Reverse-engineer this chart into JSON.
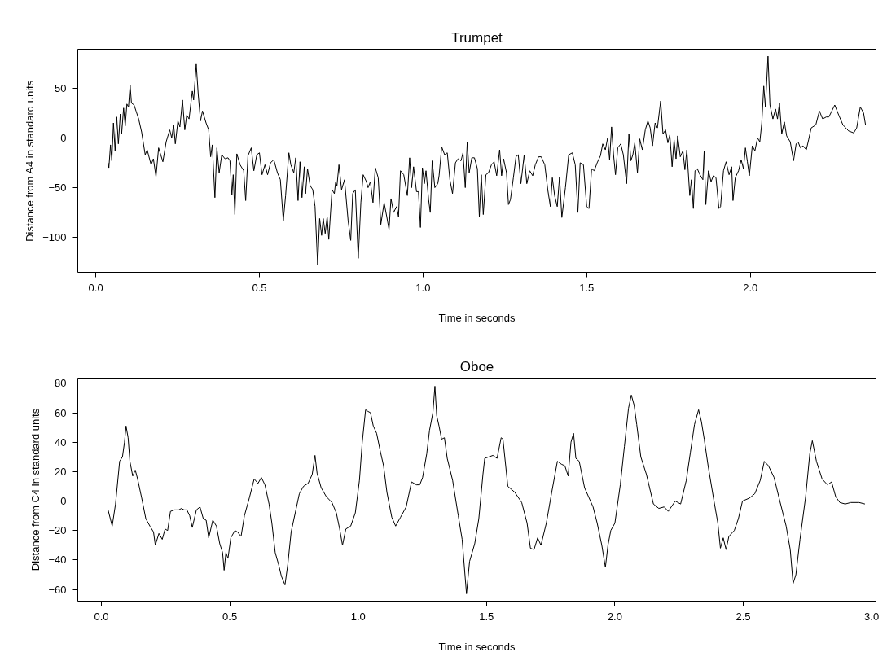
{
  "chart_data": [
    {
      "type": "line",
      "title": "Trumpet",
      "xlabel": "Time in seconds",
      "ylabel": "Distance from A4 in standard units",
      "xlim": [
        -0.055,
        2.384
      ],
      "ylim": [
        -135,
        89
      ],
      "xticks": [
        {
          "value": 0,
          "label": "0.0"
        },
        0.5,
        {
          "value": 1,
          "label": "1.0"
        },
        1.5,
        {
          "value": 2,
          "label": "2.0"
        }
      ],
      "yticks": [
        -100,
        -50,
        0,
        50
      ],
      "grid": false,
      "marker": "none",
      "line_style": "solid",
      "series": [
        {
          "color": "#000000",
          "x": [
            0.038,
            0.04,
            0.045,
            0.049,
            0.054,
            0.059,
            0.064,
            0.069,
            0.075,
            0.079,
            0.085,
            0.09,
            0.095,
            0.1,
            0.105,
            0.109,
            0.117,
            0.123,
            0.131,
            0.14,
            0.151,
            0.157,
            0.169,
            0.176,
            0.184,
            0.192,
            0.205,
            0.215,
            0.226,
            0.232,
            0.238,
            0.243,
            0.251,
            0.257,
            0.265,
            0.272,
            0.278,
            0.285,
            0.295,
            0.299,
            0.307,
            0.313,
            0.32,
            0.326,
            0.337,
            0.345,
            0.351,
            0.356,
            0.364,
            0.37,
            0.377,
            0.385,
            0.395,
            0.404,
            0.41,
            0.416,
            0.42,
            0.425,
            0.431,
            0.441,
            0.452,
            0.458,
            0.465,
            0.475,
            0.483,
            0.492,
            0.5,
            0.508,
            0.517,
            0.525,
            0.534,
            0.544,
            0.555,
            0.564,
            0.573,
            0.58,
            0.59,
            0.596,
            0.605,
            0.611,
            0.618,
            0.624,
            0.63,
            0.637,
            0.641,
            0.647,
            0.655,
            0.663,
            0.67,
            0.678,
            0.684,
            0.69,
            0.695,
            0.701,
            0.707,
            0.712,
            0.722,
            0.729,
            0.733,
            0.737,
            0.743,
            0.751,
            0.76,
            0.771,
            0.779,
            0.785,
            0.793,
            0.802,
            0.81,
            0.817,
            0.827,
            0.832,
            0.839,
            0.847,
            0.854,
            0.863,
            0.871,
            0.881,
            0.889,
            0.896,
            0.902,
            0.91,
            0.919,
            0.925,
            0.931,
            0.941,
            0.952,
            0.959,
            0.965,
            0.971,
            0.98,
            0.986,
            0.992,
            0.998,
            1.004,
            1.009,
            1.017,
            1.022,
            1.028,
            1.036,
            1.045,
            1.049,
            1.057,
            1.066,
            1.074,
            1.082,
            1.09,
            1.099,
            1.107,
            1.116,
            1.122,
            1.129,
            1.135,
            1.141,
            1.149,
            1.157,
            1.166,
            1.172,
            1.178,
            1.184,
            1.192,
            1.2,
            1.209,
            1.217,
            1.225,
            1.234,
            1.24,
            1.246,
            1.255,
            1.261,
            1.267,
            1.276,
            1.284,
            1.291,
            1.299,
            1.309,
            1.317,
            1.326,
            1.335,
            1.343,
            1.353,
            1.361,
            1.372,
            1.381,
            1.389,
            1.395,
            1.402,
            1.41,
            1.417,
            1.424,
            1.435,
            1.445,
            1.456,
            1.465,
            1.473,
            1.48,
            1.49,
            1.5,
            1.507,
            1.515,
            1.523,
            1.532,
            1.542,
            1.549,
            1.557,
            1.564,
            1.57,
            1.576,
            1.582,
            1.588,
            1.595,
            1.604,
            1.612,
            1.622,
            1.629,
            1.635,
            1.641,
            1.647,
            1.655,
            1.662,
            1.67,
            1.679,
            1.687,
            1.694,
            1.701,
            1.709,
            1.716,
            1.726,
            1.733,
            1.741,
            1.748,
            1.754,
            1.761,
            1.767,
            1.773,
            1.778,
            1.786,
            1.794,
            1.8,
            1.806,
            1.815,
            1.82,
            1.826,
            1.831,
            1.838,
            1.846,
            1.855,
            1.859,
            1.864,
            1.872,
            1.88,
            1.887,
            1.895,
            1.904,
            1.909,
            1.918,
            1.926,
            1.935,
            1.943,
            1.947,
            1.954,
            1.964,
            1.972,
            1.979,
            1.985,
            1.991,
            1.997,
            2.006,
            2.014,
            2.022,
            2.029,
            2.035,
            2.041,
            2.046,
            2.054,
            2.06,
            2.069,
            2.077,
            2.083,
            2.089,
            2.096,
            2.104,
            2.111,
            2.122,
            2.132,
            2.14,
            2.146,
            2.153,
            2.161,
            2.171,
            2.178,
            2.186,
            2.2,
            2.211,
            2.221,
            2.232,
            2.24,
            2.258,
            2.27,
            2.283,
            2.3,
            2.316,
            2.325,
            2.336,
            2.346,
            2.352
          ],
          "values": [
            -25,
            -30,
            -7,
            -23,
            15,
            -13,
            21,
            -6,
            24,
            4,
            30,
            12,
            34,
            31,
            53,
            35,
            33,
            27,
            19,
            6,
            -17,
            -12,
            -27,
            -21,
            -39,
            -10,
            -24,
            -4,
            8,
            0,
            13,
            -6,
            17,
            11,
            38,
            8,
            23,
            19,
            47,
            38,
            74,
            44,
            17,
            27,
            15,
            8,
            -19,
            -7,
            -60,
            -10,
            -35,
            -17,
            -21,
            -20,
            -23,
            -57,
            -37,
            -77,
            -16,
            -27,
            -33,
            -63,
            -18,
            -10,
            -33,
            -17,
            -15,
            -37,
            -27,
            -37,
            -25,
            -22,
            -35,
            -42,
            -83,
            -58,
            -15,
            -27,
            -35,
            -20,
            -63,
            -24,
            -60,
            -29,
            -56,
            -31,
            -48,
            -52,
            -69,
            -128,
            -81,
            -98,
            -81,
            -96,
            -79,
            -102,
            -52,
            -56,
            -44,
            -48,
            -27,
            -52,
            -42,
            -83,
            -103,
            -56,
            -52,
            -121,
            -65,
            -37,
            -44,
            -50,
            -44,
            -65,
            -30,
            -40,
            -87,
            -65,
            -79,
            -92,
            -61,
            -75,
            -69,
            -79,
            -33,
            -37,
            -58,
            -20,
            -50,
            -29,
            -54,
            -54,
            -90,
            -30,
            -46,
            -33,
            -62,
            -75,
            -23,
            -50,
            -46,
            -38,
            -9,
            -17,
            -15,
            -42,
            -56,
            -25,
            -21,
            -23,
            -15,
            -50,
            -4,
            -35,
            -20,
            -20,
            -31,
            -79,
            -37,
            -77,
            -37,
            -35,
            -27,
            -24,
            -38,
            -12,
            -38,
            -21,
            -35,
            -67,
            -62,
            -40,
            -19,
            -17,
            -46,
            -17,
            -46,
            -33,
            -38,
            -27,
            -19,
            -19,
            -27,
            -52,
            -69,
            -40,
            -58,
            -69,
            -39,
            -80,
            -50,
            -17,
            -15,
            -27,
            -75,
            -25,
            -27,
            -69,
            -71,
            -31,
            -33,
            -25,
            -18,
            -6,
            -12,
            0,
            -22,
            11,
            -17,
            -37,
            -10,
            -6,
            -17,
            -46,
            4,
            -23,
            -17,
            -5,
            -35,
            -1,
            -12,
            8,
            17,
            10,
            -8,
            15,
            10,
            37,
            4,
            8,
            -5,
            3,
            -29,
            -2,
            -21,
            2,
            -19,
            -13,
            -32,
            -12,
            -58,
            -42,
            -71,
            -33,
            -31,
            -37,
            -42,
            -13,
            -67,
            -33,
            -44,
            -38,
            -40,
            -71,
            -69,
            -33,
            -24,
            -37,
            -29,
            -63,
            -40,
            -33,
            -22,
            -31,
            -10,
            -24,
            -38,
            -8,
            -13,
            0,
            -4,
            15,
            52,
            31,
            82,
            33,
            19,
            29,
            19,
            35,
            4,
            16,
            2,
            -4,
            -23,
            -6,
            -4,
            -10,
            -8,
            -12,
            -2,
            10,
            13,
            27,
            19,
            21,
            21,
            33,
            23,
            13,
            7,
            5,
            10,
            31,
            25,
            13
          ]
        }
      ]
    },
    {
      "type": "line",
      "title": "Oboe",
      "xlabel": "Time in seconds",
      "ylabel": "Distance from C4 in standard units",
      "xlim": [
        -0.092,
        3.017
      ],
      "ylim": [
        -68,
        83.5
      ],
      "xticks": [
        {
          "value": 0,
          "label": "0.0"
        },
        0.5,
        {
          "value": 1,
          "label": "1.0"
        },
        1.5,
        {
          "value": 2,
          "label": "2.0"
        },
        2.5,
        {
          "value": 3,
          "label": "3.0"
        }
      ],
      "yticks": [
        -60,
        -40,
        -20,
        0,
        20,
        40,
        60,
        80
      ],
      "grid": false,
      "marker": "none",
      "line_style": "solid",
      "series": [
        {
          "color": "#000000",
          "x": [
            0.026,
            0.042,
            0.055,
            0.071,
            0.082,
            0.09,
            0.096,
            0.104,
            0.111,
            0.122,
            0.132,
            0.141,
            0.157,
            0.173,
            0.189,
            0.203,
            0.21,
            0.224,
            0.237,
            0.248,
            0.258,
            0.269,
            0.285,
            0.301,
            0.312,
            0.322,
            0.333,
            0.344,
            0.354,
            0.37,
            0.384,
            0.397,
            0.408,
            0.418,
            0.434,
            0.448,
            0.461,
            0.472,
            0.478,
            0.485,
            0.493,
            0.504,
            0.52,
            0.53,
            0.544,
            0.557,
            0.576,
            0.595,
            0.61,
            0.623,
            0.637,
            0.653,
            0.664,
            0.677,
            0.69,
            0.701,
            0.715,
            0.726,
            0.739,
            0.755,
            0.771,
            0.787,
            0.805,
            0.821,
            0.832,
            0.84,
            0.856,
            0.876,
            0.898,
            0.915,
            0.928,
            0.939,
            0.952,
            0.971,
            0.989,
            1.005,
            1.016,
            1.029,
            1.037,
            1.048,
            1.059,
            1.072,
            1.086,
            1.099,
            1.112,
            1.131,
            1.146,
            1.165,
            1.187,
            1.208,
            1.227,
            1.24,
            1.251,
            1.267,
            1.278,
            1.291,
            1.299,
            1.306,
            1.315,
            1.325,
            1.336,
            1.347,
            1.368,
            1.39,
            1.405,
            1.422,
            1.434,
            1.454,
            1.47,
            1.486,
            1.493,
            1.509,
            1.525,
            1.541,
            1.557,
            1.564,
            1.583,
            1.61,
            1.637,
            1.658,
            1.671,
            1.685,
            1.699,
            1.712,
            1.733,
            1.754,
            1.776,
            1.792,
            1.805,
            1.818,
            1.829,
            1.839,
            1.848,
            1.861,
            1.882,
            1.915,
            1.931,
            1.949,
            1.963,
            1.973,
            1.984,
            2.0,
            2.021,
            2.037,
            2.053,
            2.064,
            2.075,
            2.085,
            2.101,
            2.123,
            2.15,
            2.171,
            2.192,
            2.208,
            2.235,
            2.256,
            2.278,
            2.294,
            2.31,
            2.326,
            2.337,
            2.348,
            2.363,
            2.385,
            2.401,
            2.411,
            2.422,
            2.433,
            2.444,
            2.465,
            2.481,
            2.497,
            2.524,
            2.545,
            2.566,
            2.582,
            2.598,
            2.62,
            2.641,
            2.667,
            2.683,
            2.694,
            2.705,
            2.721,
            2.743,
            2.759,
            2.769,
            2.785,
            2.807,
            2.828,
            2.844,
            2.86,
            2.876,
            2.897,
            2.919,
            2.951,
            2.974
          ],
          "values": [
            -6,
            -17,
            -2,
            27,
            30,
            40,
            51,
            43,
            27,
            17,
            21,
            15,
            2,
            -12,
            -17,
            -21,
            -30,
            -22,
            -26,
            -19,
            -20,
            -7,
            -6,
            -6,
            -5,
            -6,
            -6,
            -10,
            -18,
            -6,
            -4,
            -12,
            -13,
            -25,
            -13,
            -17,
            -29,
            -35,
            -47,
            -35,
            -39,
            -25,
            -20,
            -21,
            -24,
            -10,
            2,
            15,
            12,
            16,
            11,
            -2,
            -15,
            -35,
            -43,
            -51,
            -57,
            -43,
            -21,
            -8,
            5,
            10,
            12,
            18,
            31,
            19,
            9,
            3,
            -1,
            -8,
            -19,
            -30,
            -19,
            -17,
            -8,
            14,
            40,
            62,
            61,
            60,
            51,
            46,
            34,
            24,
            6,
            -11,
            -17,
            -11,
            -4,
            13,
            11,
            11,
            16,
            32,
            48,
            60,
            78,
            58,
            51,
            42,
            43,
            29,
            14,
            -10,
            -26,
            -63,
            -41,
            -29,
            -12,
            18,
            29,
            30,
            31,
            29,
            43,
            42,
            10,
            6,
            -1,
            -15,
            -32,
            -33,
            -25,
            -30,
            -15,
            6,
            27,
            25,
            24,
            17,
            40,
            46,
            29,
            27,
            9,
            -4,
            -15,
            -30,
            -45,
            -30,
            -20,
            -15,
            11,
            37,
            63,
            72,
            65,
            52,
            30,
            18,
            -2,
            -5,
            -4,
            -7,
            0,
            -2,
            14,
            33,
            52,
            62,
            54,
            42,
            24,
            1,
            -15,
            -32,
            -25,
            -33,
            -24,
            -20,
            -12,
            0,
            2,
            5,
            14,
            27,
            24,
            16,
            1,
            -17,
            -33,
            -56,
            -50,
            -26,
            3,
            32,
            41,
            27,
            15,
            11,
            13,
            3,
            -1,
            -2,
            -1,
            -1,
            -2
          ]
        }
      ]
    }
  ]
}
